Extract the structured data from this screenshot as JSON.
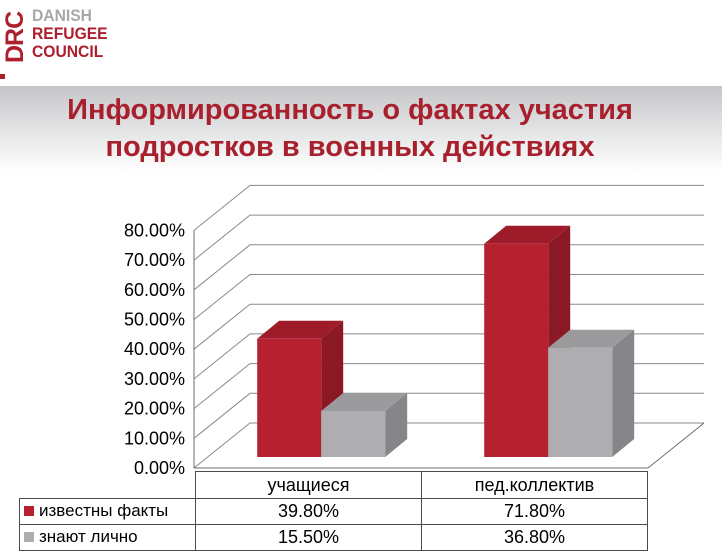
{
  "logo": {
    "vertical": "DRC",
    "line1": "DANISH",
    "line2": "REFUGEE",
    "line3": "COUNCIL",
    "red": "#ae1f2d",
    "gray": "#a7a8aa"
  },
  "title": {
    "line1": "Информированность о фактах участия",
    "line2": "подростков в военных действиях",
    "color": "#a8202e"
  },
  "chart_data": {
    "type": "bar",
    "style": "3d-clustered-column",
    "categories": [
      "учащиеся",
      "пед.коллектив"
    ],
    "series": [
      {
        "name": "известны факты",
        "values": [
          39.8,
          71.8
        ],
        "values_display": [
          "39.80%",
          "71.80%"
        ],
        "color": "#b7202f",
        "color_top": "#9e1b2a",
        "color_side": "#8b1825"
      },
      {
        "name": "знают лично",
        "values": [
          15.5,
          36.8
        ],
        "values_display": [
          "15.50%",
          "36.80%"
        ],
        "color": "#aeaeb0",
        "color_top": "#9b9b9d",
        "color_side": "#86868a"
      }
    ],
    "ylim": [
      0,
      80
    ],
    "ytick_step": 10,
    "ytick_labels": [
      "0.00%",
      "10.00%",
      "20.00%",
      "30.00%",
      "40.00%",
      "50.00%",
      "60.00%",
      "70.00%",
      "80.00%"
    ],
    "grid": true,
    "legend_position": "table-left-column",
    "xlabel": "",
    "ylabel": ""
  }
}
